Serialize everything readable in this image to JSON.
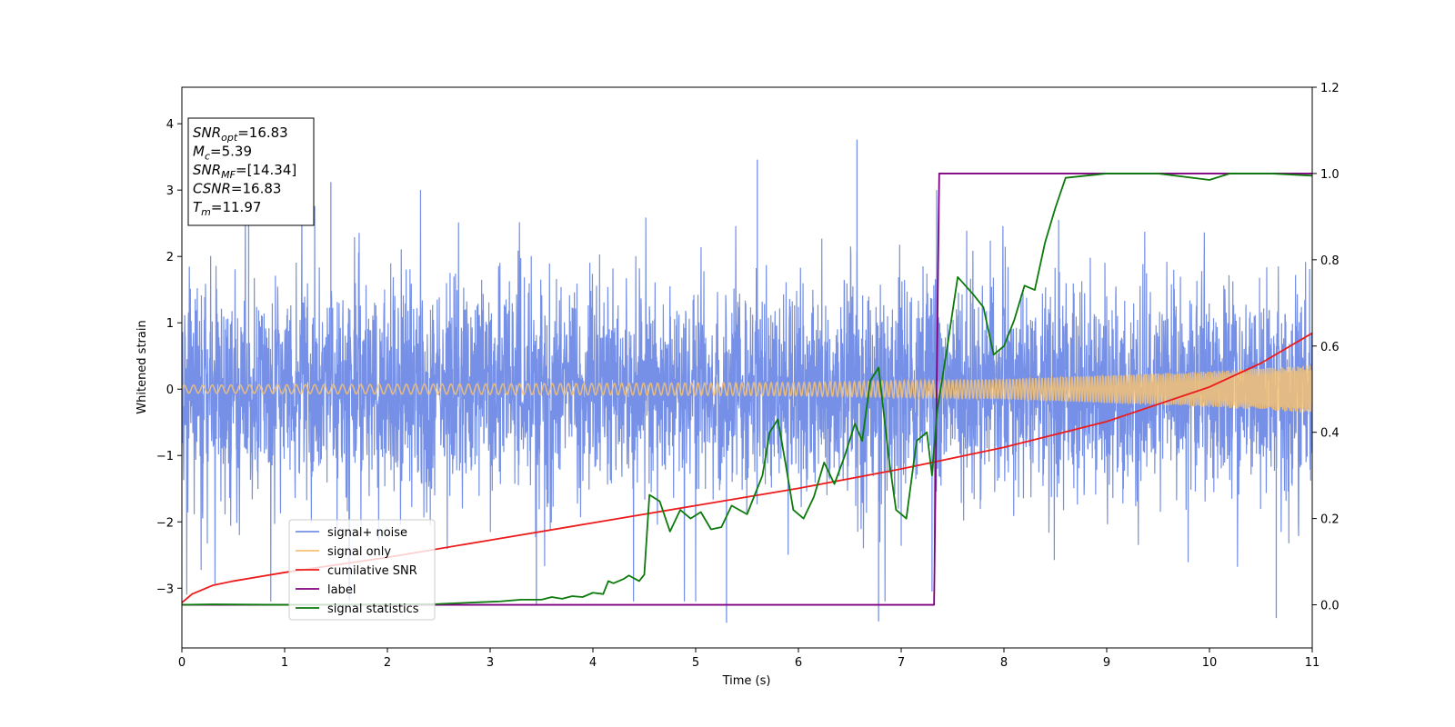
{
  "chart_data": {
    "type": "line",
    "xlabel": "Time (s)",
    "ylabel": "Whitened strain",
    "xlim": [
      0,
      11
    ],
    "ylim": [
      -3.9,
      4.55
    ],
    "y2lim": [
      -0.1,
      1.2
    ],
    "xticks": [
      "0",
      "1",
      "2",
      "3",
      "4",
      "5",
      "6",
      "7",
      "8",
      "9",
      "10",
      "11"
    ],
    "yticks": [
      "−3",
      "−2",
      "−1",
      "0",
      "1",
      "2",
      "3",
      "4"
    ],
    "y2ticks": [
      "0.0",
      "0.2",
      "0.4",
      "0.6",
      "0.8",
      "1.0",
      "1.2"
    ],
    "grid": false,
    "legend_position": "lower-left",
    "annotation": [
      {
        "base": "SNR",
        "sub": "opt",
        "value": "=16.83"
      },
      {
        "base": "M",
        "sub": "c",
        "value": "=5.39"
      },
      {
        "base": "SNR",
        "sub": "MF",
        "value": "=[14.34]"
      },
      {
        "base": "CSNR",
        "sub": "",
        "value": "=16.83"
      },
      {
        "base": "T",
        "sub": "m",
        "value": "=11.97"
      }
    ],
    "series": [
      {
        "name": "signal+ noise",
        "color": "#7590e6",
        "axis": "left",
        "kind": "noise",
        "sigma": 0.95,
        "extremes": [
          [
            0.65,
            3.28
          ],
          [
            1.45,
            3.12
          ],
          [
            5.6,
            3.46
          ],
          [
            6.57,
            3.76
          ],
          [
            5.3,
            -3.52
          ],
          [
            6.78,
            -3.5
          ],
          [
            10.65,
            -3.45
          ],
          [
            3.45,
            -3.25
          ],
          [
            7.3,
            -3.05
          ]
        ]
      },
      {
        "name": "signal only",
        "color": "#f5c273",
        "axis": "left",
        "kind": "chirp",
        "amplitude": [
          [
            0,
            0.06
          ],
          [
            6,
            0.1
          ],
          [
            8,
            0.15
          ],
          [
            10,
            0.27
          ],
          [
            11,
            0.36
          ]
        ]
      },
      {
        "name": "cumilative SNR",
        "color": "#ee1b1b",
        "axis": "right",
        "points": [
          [
            0,
            0.005
          ],
          [
            0.1,
            0.025
          ],
          [
            0.3,
            0.045
          ],
          [
            0.5,
            0.055
          ],
          [
            1,
            0.075
          ],
          [
            2,
            0.11
          ],
          [
            3,
            0.15
          ],
          [
            4,
            0.19
          ],
          [
            5,
            0.23
          ],
          [
            6,
            0.27
          ],
          [
            7,
            0.315
          ],
          [
            8,
            0.365
          ],
          [
            9,
            0.425
          ],
          [
            10,
            0.505
          ],
          [
            10.5,
            0.56
          ],
          [
            11,
            0.63
          ]
        ]
      },
      {
        "name": "label",
        "color": "#800080",
        "axis": "right",
        "points": [
          [
            0,
            0.0
          ],
          [
            7.32,
            0.0
          ],
          [
            7.37,
            1.0
          ],
          [
            11,
            1.0
          ]
        ]
      },
      {
        "name": "signal statistics",
        "color": "#0b7a0b",
        "axis": "right",
        "points": [
          [
            0,
            0.0
          ],
          [
            0.3,
            0.001
          ],
          [
            1,
            0.0
          ],
          [
            2,
            0.001
          ],
          [
            2.5,
            0.002
          ],
          [
            2.7,
            0.004
          ],
          [
            2.9,
            0.006
          ],
          [
            3.1,
            0.008
          ],
          [
            3.3,
            0.012
          ],
          [
            3.5,
            0.012
          ],
          [
            3.6,
            0.018
          ],
          [
            3.7,
            0.014
          ],
          [
            3.8,
            0.02
          ],
          [
            3.9,
            0.018
          ],
          [
            4.0,
            0.028
          ],
          [
            4.1,
            0.025
          ],
          [
            4.15,
            0.055
          ],
          [
            4.2,
            0.05
          ],
          [
            4.3,
            0.06
          ],
          [
            4.35,
            0.068
          ],
          [
            4.45,
            0.055
          ],
          [
            4.5,
            0.07
          ],
          [
            4.55,
            0.255
          ],
          [
            4.65,
            0.24
          ],
          [
            4.75,
            0.17
          ],
          [
            4.85,
            0.22
          ],
          [
            4.95,
            0.2
          ],
          [
            5.05,
            0.215
          ],
          [
            5.15,
            0.175
          ],
          [
            5.25,
            0.18
          ],
          [
            5.35,
            0.23
          ],
          [
            5.5,
            0.21
          ],
          [
            5.65,
            0.3
          ],
          [
            5.72,
            0.4
          ],
          [
            5.8,
            0.43
          ],
          [
            5.88,
            0.32
          ],
          [
            5.95,
            0.22
          ],
          [
            6.05,
            0.2
          ],
          [
            6.15,
            0.25
          ],
          [
            6.25,
            0.33
          ],
          [
            6.35,
            0.28
          ],
          [
            6.45,
            0.345
          ],
          [
            6.55,
            0.42
          ],
          [
            6.62,
            0.38
          ],
          [
            6.7,
            0.52
          ],
          [
            6.78,
            0.55
          ],
          [
            6.88,
            0.34
          ],
          [
            6.95,
            0.22
          ],
          [
            7.05,
            0.2
          ],
          [
            7.15,
            0.38
          ],
          [
            7.25,
            0.4
          ],
          [
            7.3,
            0.3
          ],
          [
            7.35,
            0.45
          ],
          [
            7.45,
            0.6
          ],
          [
            7.55,
            0.76
          ],
          [
            7.7,
            0.72
          ],
          [
            7.8,
            0.69
          ],
          [
            7.9,
            0.58
          ],
          [
            8.0,
            0.6
          ],
          [
            8.1,
            0.66
          ],
          [
            8.2,
            0.74
          ],
          [
            8.3,
            0.73
          ],
          [
            8.4,
            0.84
          ],
          [
            8.5,
            0.92
          ],
          [
            8.6,
            0.99
          ],
          [
            8.8,
            0.995
          ],
          [
            9.0,
            1.0
          ],
          [
            9.5,
            1.0
          ],
          [
            10.0,
            0.985
          ],
          [
            10.2,
            1.0
          ],
          [
            10.6,
            1.0
          ],
          [
            11.0,
            0.995
          ]
        ]
      }
    ]
  }
}
